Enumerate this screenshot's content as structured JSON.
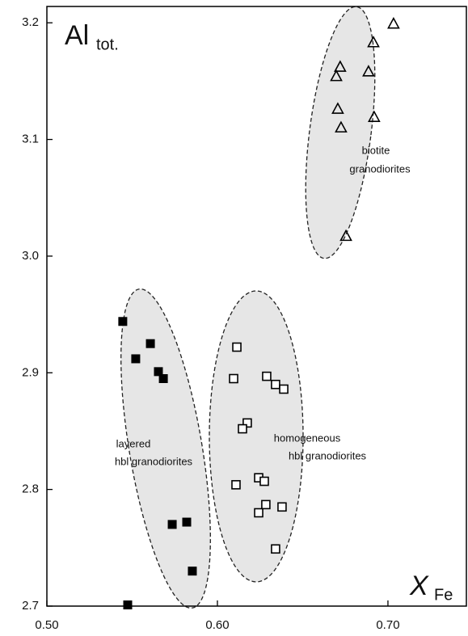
{
  "chart_data": {
    "type": "scatter",
    "y_label": {
      "main": "Al",
      "sub": "tot."
    },
    "x_label": {
      "main": "X",
      "sub": "Fe"
    },
    "xlim": [
      0.5,
      0.746
    ],
    "ylim": [
      2.7,
      3.214
    ],
    "xticks": [
      {
        "value": 0.5,
        "label": "0.50"
      },
      {
        "value": 0.6,
        "label": "0.60"
      },
      {
        "value": 0.7,
        "label": "0.70"
      }
    ],
    "yticks": [
      2.7,
      2.8,
      2.9,
      {
        "value": 3,
        "label": "3.0"
      },
      3.1,
      3.2
    ],
    "annotations": [
      [
        "layered",
        "hbl granodiorites"
      ],
      [
        "homogeneous",
        "hbl granodiorites"
      ],
      [
        "biotite",
        "granodiorites"
      ]
    ],
    "series": [
      {
        "marker": "filled-square",
        "color": "#000000",
        "x": [
          0.5445,
          0.5521,
          0.5607,
          0.5654,
          0.5683,
          0.5735,
          0.582,
          0.5853,
          0.5474
        ],
        "values": [
          2.944,
          2.912,
          2.925,
          2.901,
          2.895,
          2.77,
          2.772,
          2.73,
          2.701
        ]
      },
      {
        "marker": "open-square",
        "color": "#000000",
        "x": [
          0.6114,
          0.6095,
          0.6289,
          0.6341,
          0.6389,
          0.6175,
          0.6147,
          0.6109,
          0.6242,
          0.6275,
          0.6284,
          0.6242,
          0.6379,
          0.6341
        ],
        "values": [
          2.922,
          2.895,
          2.897,
          2.89,
          2.886,
          2.857,
          2.852,
          2.804,
          2.81,
          2.807,
          2.787,
          2.78,
          2.785,
          2.749
        ]
      },
      {
        "marker": "open-triangle",
        "color": "#000000",
        "x": [
          0.7033,
          0.6915,
          0.672,
          0.6697,
          0.6886,
          0.6706,
          0.6725,
          0.6919,
          0.6754
        ],
        "values": [
          3.199,
          3.183,
          3.162,
          3.154,
          3.158,
          3.126,
          3.11,
          3.119,
          3.017
        ]
      }
    ]
  }
}
